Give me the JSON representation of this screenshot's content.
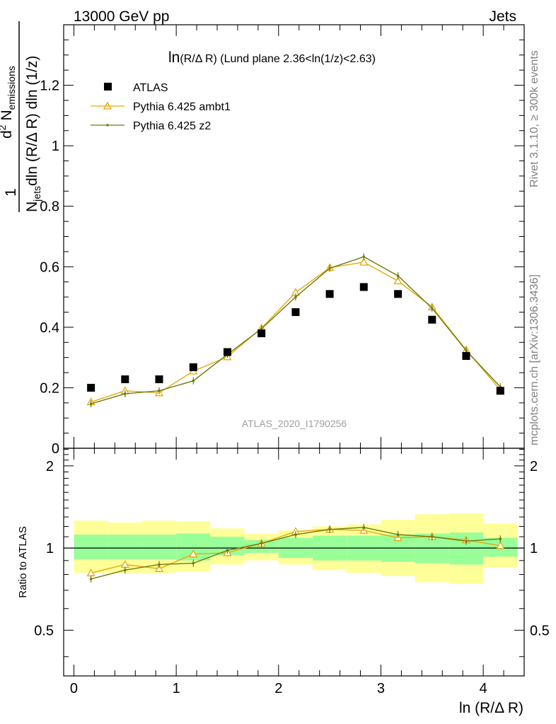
{
  "header": {
    "left": "13000 GeV pp",
    "right": "Jets",
    "rivet": "Rivet 3.1.10, ≥ 300k events",
    "mcplots": "mcplots.cern.ch [arXiv:1306.3436]",
    "analysis": "ATLAS_2020_I1790256"
  },
  "colors": {
    "data": "#000000",
    "ambt1": "#e8a80c",
    "z2": "#6b7d0b",
    "band_inner": "#99ff99",
    "band_outer": "#ffff99",
    "side_text": "#808080",
    "analysis_text": "#a0a0a0"
  },
  "chart_data": [
    {
      "type": "scatter",
      "title": "ln(R/Δ R) (Lund plane 2.36<ln(1/z)<2.63)",
      "title_prefix": "ln",
      "title_rest": "(R/Δ R) (Lund plane 2.36<ln(1/z)<2.63)",
      "xlabel": "ln (R/Δ R)",
      "ylabel": "1/N_jets d²N_emissions / dln(R/Δ R) dln(1/z)",
      "ylabel_parts": {
        "one": "1",
        "n": "N",
        "jets": "jets",
        "dln_r": "dln (R/Δ R) dln (1/z)",
        "d2": "d",
        "two": "2",
        "n2": " N",
        "emissions": "emissions"
      },
      "xlim": [
        -0.1,
        4.4
      ],
      "ylim": [
        0,
        1.4
      ],
      "yticks": [
        "0",
        "0.2",
        "0.4",
        "0.6",
        "0.8",
        "1",
        "1.2"
      ],
      "legend_position": "top-left",
      "legend": [
        "ATLAS",
        "Pythia 6.425 ambt1",
        "Pythia 6.425 z2"
      ],
      "x": [
        0.167,
        0.5,
        0.833,
        1.167,
        1.5,
        1.833,
        2.167,
        2.5,
        2.833,
        3.167,
        3.5,
        3.833,
        4.167
      ],
      "series": [
        {
          "name": "ATLAS",
          "values": [
            0.2,
            0.228,
            0.228,
            0.268,
            0.318,
            0.38,
            0.45,
            0.51,
            0.533,
            0.51,
            0.425,
            0.305,
            0.19
          ]
        },
        {
          "name": "Pythia 6.425 ambt1",
          "values": [
            0.153,
            0.19,
            0.183,
            0.255,
            0.302,
            0.397,
            0.515,
            0.597,
            0.615,
            0.553,
            0.467,
            0.325,
            0.193
          ]
        },
        {
          "name": "Pythia 6.425 z2",
          "values": [
            0.147,
            0.18,
            0.19,
            0.223,
            0.31,
            0.395,
            0.5,
            0.595,
            0.633,
            0.57,
            0.463,
            0.323,
            0.203
          ]
        }
      ]
    },
    {
      "type": "line",
      "title": "",
      "xlabel": "ln (R/Δ R)",
      "ylabel": "Ratio to ATLAS",
      "xlim": [
        -0.1,
        4.4
      ],
      "ylim": [
        0.34,
        2.32
      ],
      "xticks": [
        "0",
        "1",
        "2",
        "3",
        "4"
      ],
      "yticks": [
        "0.5",
        "1",
        "2"
      ],
      "reference_line": 1,
      "x": [
        0.167,
        0.5,
        0.833,
        1.167,
        1.5,
        1.833,
        2.167,
        2.5,
        2.833,
        3.167,
        3.5,
        3.833,
        4.167
      ],
      "band_inner_low": [
        0.91,
        0.91,
        0.91,
        0.9,
        0.94,
        0.96,
        0.92,
        0.9,
        0.9,
        0.89,
        0.88,
        0.87,
        0.93
      ],
      "band_inner_high": [
        1.12,
        1.12,
        1.12,
        1.13,
        1.1,
        1.07,
        1.09,
        1.11,
        1.11,
        1.12,
        1.13,
        1.14,
        1.09
      ],
      "band_outer_low": [
        0.81,
        0.81,
        0.81,
        0.82,
        0.87,
        0.9,
        0.87,
        0.83,
        0.81,
        0.79,
        0.75,
        0.74,
        0.85
      ],
      "band_outer_high": [
        1.26,
        1.24,
        1.26,
        1.25,
        1.18,
        1.13,
        1.16,
        1.2,
        1.22,
        1.27,
        1.33,
        1.34,
        1.23
      ],
      "series": [
        {
          "name": "Pythia 6.425 ambt1",
          "values": [
            0.81,
            0.87,
            0.84,
            0.95,
            0.96,
            1.04,
            1.15,
            1.17,
            1.16,
            1.09,
            1.1,
            1.07,
            1.02
          ]
        },
        {
          "name": "Pythia 6.425 z2",
          "values": [
            0.77,
            0.83,
            0.87,
            0.88,
            0.98,
            1.04,
            1.12,
            1.17,
            1.19,
            1.12,
            1.1,
            1.06,
            1.08
          ]
        }
      ]
    }
  ]
}
